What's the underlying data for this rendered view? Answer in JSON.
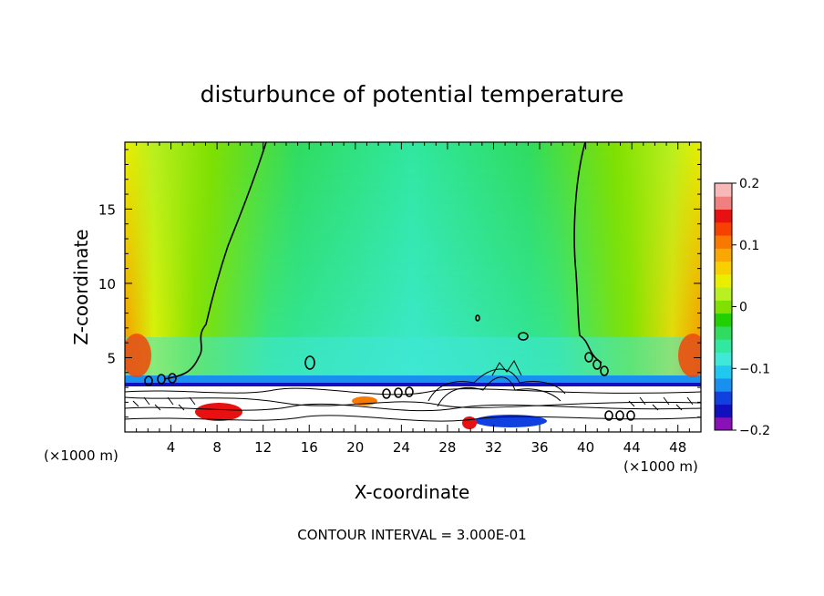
{
  "chart_data": {
    "type": "heatmap",
    "title": "disturbunce of potential temperature",
    "xlabel": "X-coordinate",
    "ylabel": "Z-coordinate",
    "x_unit": "(×1000 m)",
    "x_unit_right": "(×1000 m)",
    "xlim": [
      0,
      50
    ],
    "ylim": [
      0,
      19.5
    ],
    "xticks": [
      4,
      8,
      12,
      16,
      20,
      24,
      28,
      32,
      36,
      40,
      44,
      48
    ],
    "yticks": [
      5,
      10,
      15
    ],
    "contour_interval_text": "CONTOUR INTERVAL = 3.000E-01",
    "colorbar": {
      "min": -0.2,
      "max": 0.2,
      "tick_labels": [
        "0.2",
        "0.1",
        "0",
        "−0.1",
        "−0.2"
      ],
      "tick_values": [
        0.2,
        0.1,
        0,
        -0.1,
        -0.2
      ],
      "colors": [
        "#8a10b8",
        "#1010c0",
        "#1040e0",
        "#1890f0",
        "#20c8f0",
        "#40e8d8",
        "#30e8a0",
        "#30dc60",
        "#20d000",
        "#80e000",
        "#b8f020",
        "#e8f000",
        "#f8d000",
        "#f8a800",
        "#f87800",
        "#f84000",
        "#e81010",
        "#f08080",
        "#f8b8b8"
      ]
    }
  }
}
